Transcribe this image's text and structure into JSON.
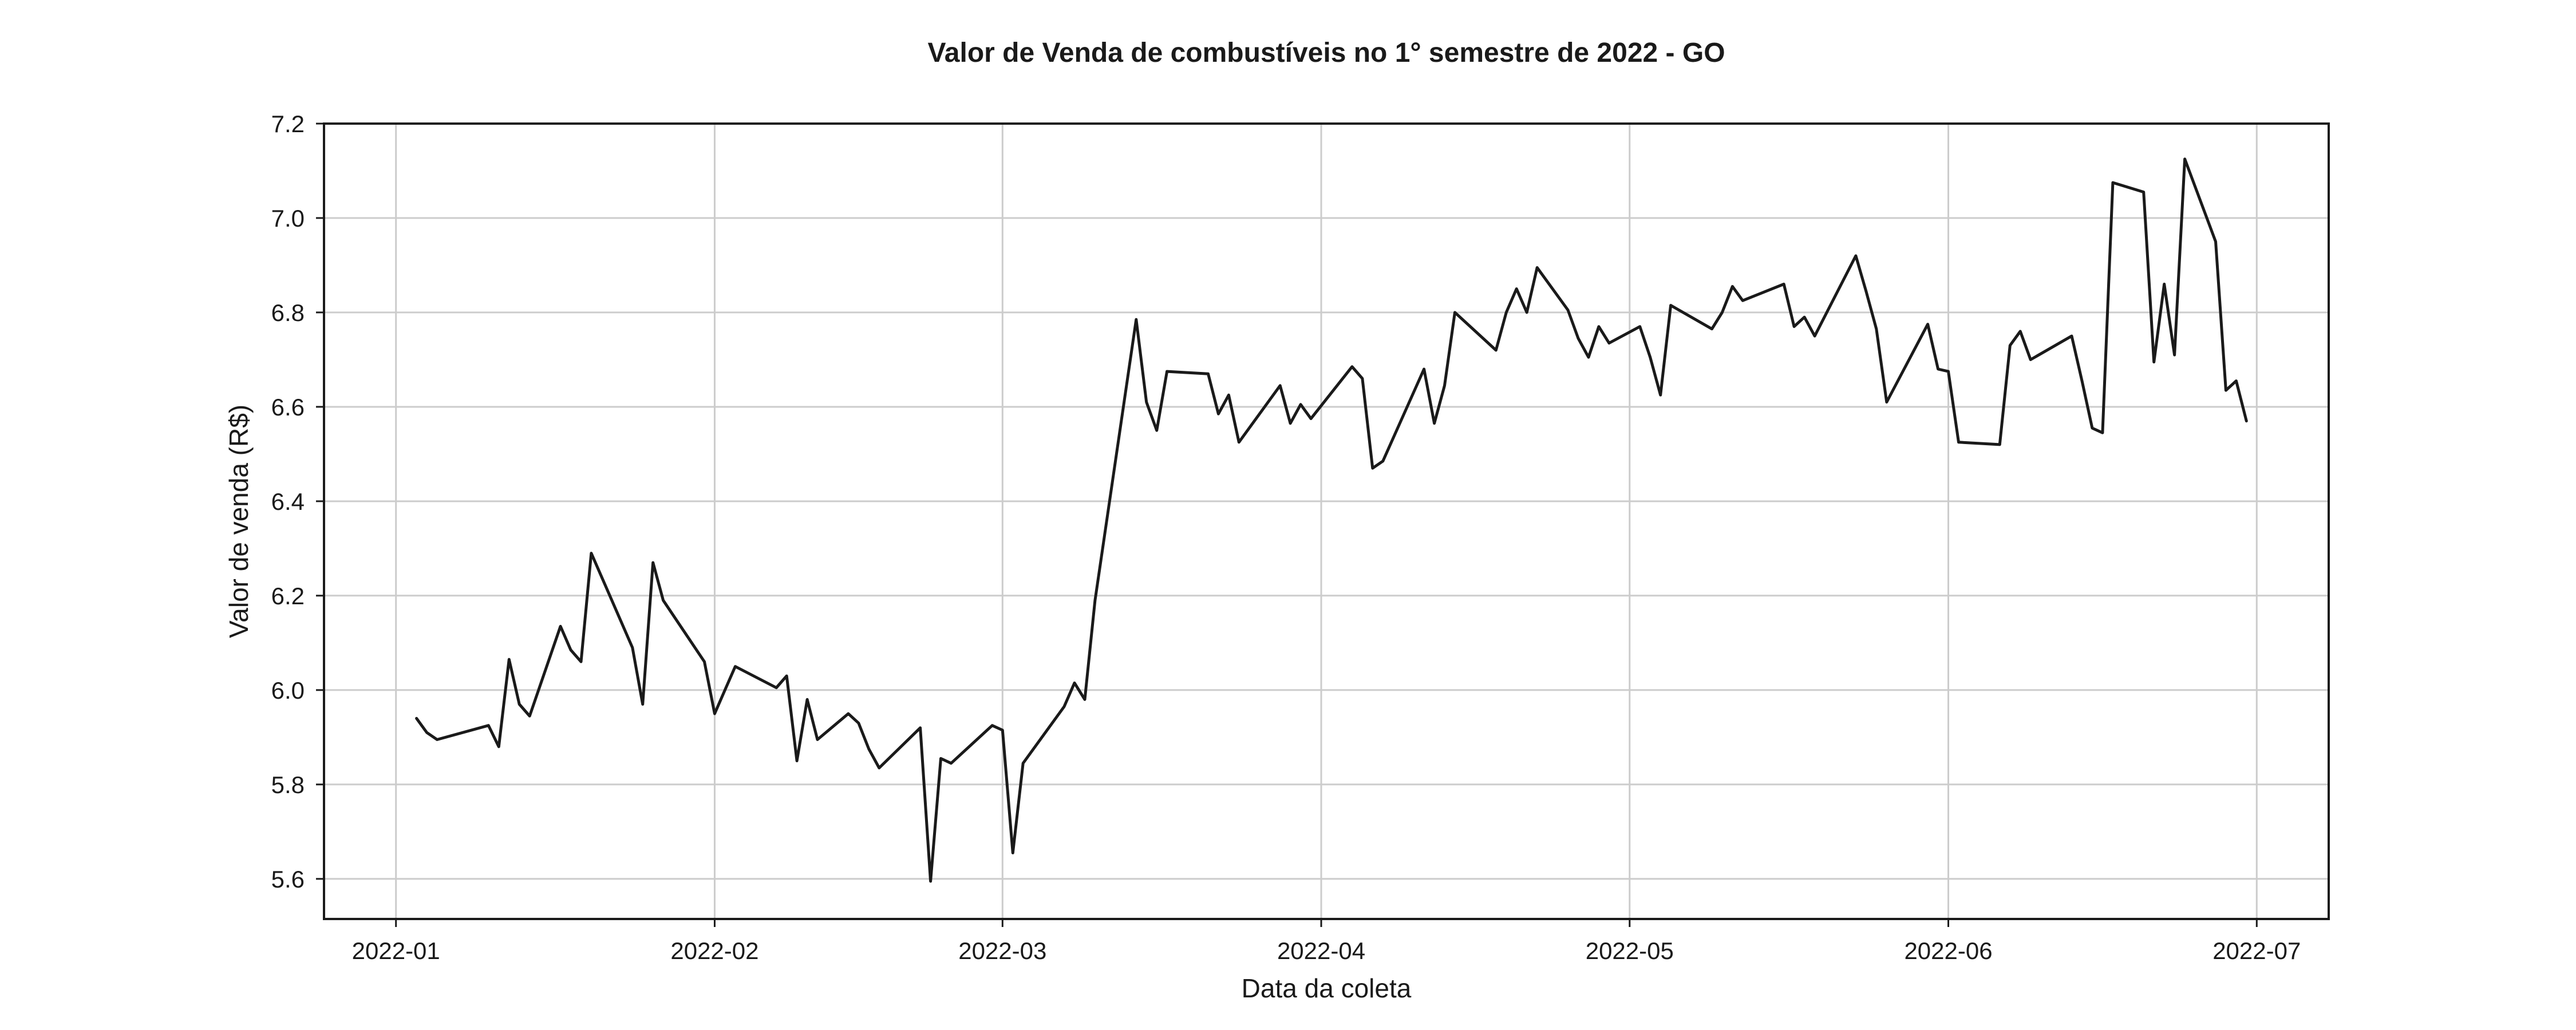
{
  "chart_data": {
    "type": "line",
    "title": "Valor de Venda de combustíveis no 1° semestre de 2022 - GO",
    "xlabel": "Data da coleta",
    "ylabel": "Valor de venda (R$)",
    "x_tick_labels": [
      "2022-01",
      "2022-02",
      "2022-03",
      "2022-04",
      "2022-05",
      "2022-06",
      "2022-07"
    ],
    "y_tick_labels": [
      "5.6",
      "5.8",
      "6.0",
      "6.2",
      "6.4",
      "6.6",
      "6.8",
      "7.0",
      "7.2"
    ],
    "ylim": [
      5.515,
      7.2
    ],
    "xlim": [
      "2021-12-25",
      "2022-07-08"
    ],
    "grid": true,
    "line_color": "#1a1a1a",
    "series": [
      {
        "x": [
          "2022-01-03",
          "2022-01-04",
          "2022-01-05",
          "2022-01-10",
          "2022-01-11",
          "2022-01-12",
          "2022-01-13",
          "2022-01-14",
          "2022-01-17",
          "2022-01-18",
          "2022-01-19",
          "2022-01-20",
          "2022-01-24",
          "2022-01-25",
          "2022-01-26",
          "2022-01-27",
          "2022-01-31",
          "2022-02-01",
          "2022-02-02",
          "2022-02-03",
          "2022-02-07",
          "2022-02-08",
          "2022-02-09",
          "2022-02-10",
          "2022-02-11",
          "2022-02-14",
          "2022-02-15",
          "2022-02-16",
          "2022-02-17",
          "2022-02-21",
          "2022-02-22",
          "2022-02-23",
          "2022-02-24",
          "2022-02-28",
          "2022-03-01",
          "2022-03-02",
          "2022-03-03",
          "2022-03-07",
          "2022-03-08",
          "2022-03-09",
          "2022-03-10",
          "2022-03-14",
          "2022-03-15",
          "2022-03-16",
          "2022-03-17",
          "2022-03-21",
          "2022-03-22",
          "2022-03-23",
          "2022-03-24",
          "2022-03-28",
          "2022-03-29",
          "2022-03-30",
          "2022-03-31",
          "2022-04-04",
          "2022-04-05",
          "2022-04-06",
          "2022-04-07",
          "2022-04-11",
          "2022-04-12",
          "2022-04-13",
          "2022-04-14",
          "2022-04-18",
          "2022-04-19",
          "2022-04-20",
          "2022-04-21",
          "2022-04-22",
          "2022-04-25",
          "2022-04-26",
          "2022-04-27",
          "2022-04-28",
          "2022-04-29",
          "2022-05-02",
          "2022-05-03",
          "2022-05-04",
          "2022-05-05",
          "2022-05-09",
          "2022-05-10",
          "2022-05-11",
          "2022-05-12",
          "2022-05-16",
          "2022-05-17",
          "2022-05-18",
          "2022-05-19",
          "2022-05-23",
          "2022-05-24",
          "2022-05-25",
          "2022-05-26",
          "2022-05-30",
          "2022-05-31",
          "2022-06-01",
          "2022-06-02",
          "2022-06-06",
          "2022-06-07",
          "2022-06-08",
          "2022-06-09",
          "2022-06-13",
          "2022-06-14",
          "2022-06-15",
          "2022-06-16",
          "2022-06-17",
          "2022-06-20",
          "2022-06-21",
          "2022-06-22",
          "2022-06-23",
          "2022-06-24",
          "2022-06-27",
          "2022-06-28",
          "2022-06-29",
          "2022-06-30"
        ],
        "y": [
          5.94,
          5.91,
          5.895,
          5.925,
          5.88,
          6.065,
          5.97,
          5.945,
          6.135,
          6.085,
          6.06,
          6.29,
          6.09,
          5.97,
          6.27,
          6.19,
          6.06,
          5.95,
          6.0,
          6.05,
          6.005,
          6.03,
          5.85,
          5.98,
          5.895,
          5.95,
          5.93,
          5.875,
          5.835,
          5.92,
          5.595,
          5.855,
          5.845,
          5.925,
          5.915,
          5.655,
          5.845,
          5.965,
          6.015,
          5.98,
          6.19,
          6.785,
          6.61,
          6.55,
          6.675,
          6.67,
          6.585,
          6.625,
          6.525,
          6.645,
          6.565,
          6.605,
          6.575,
          6.685,
          6.66,
          6.47,
          6.485,
          6.68,
          6.565,
          6.645,
          6.8,
          6.72,
          6.8,
          6.85,
          6.8,
          6.895,
          6.805,
          6.745,
          6.705,
          6.77,
          6.735,
          6.77,
          6.705,
          6.625,
          6.815,
          6.765,
          6.8,
          6.855,
          6.825,
          6.86,
          6.77,
          6.79,
          6.75,
          6.92,
          6.845,
          6.765,
          6.61,
          6.775,
          6.68,
          6.675,
          6.525,
          6.52,
          6.73,
          6.76,
          6.7,
          6.75,
          6.655,
          6.555,
          6.545,
          7.075,
          7.055,
          6.695,
          6.86,
          6.71,
          7.125,
          6.95,
          6.635,
          6.655,
          6.57
        ]
      }
    ]
  }
}
